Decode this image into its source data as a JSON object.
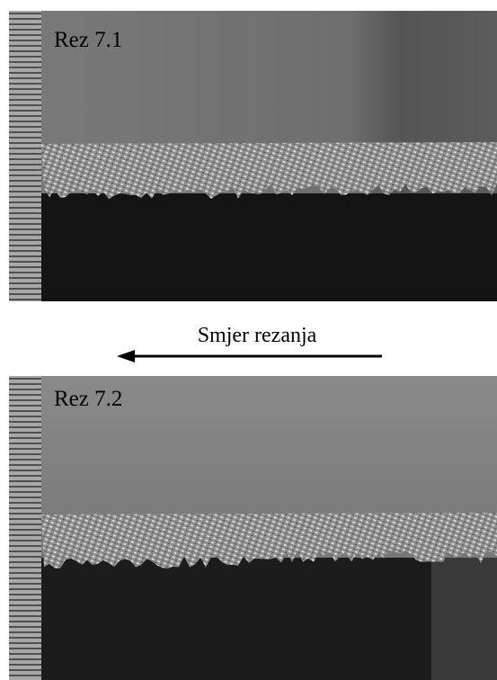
{
  "panels": [
    {
      "label": "Rez 7.1"
    },
    {
      "label": "Rez 7.2"
    }
  ],
  "caption": "Smjer rezanja"
}
